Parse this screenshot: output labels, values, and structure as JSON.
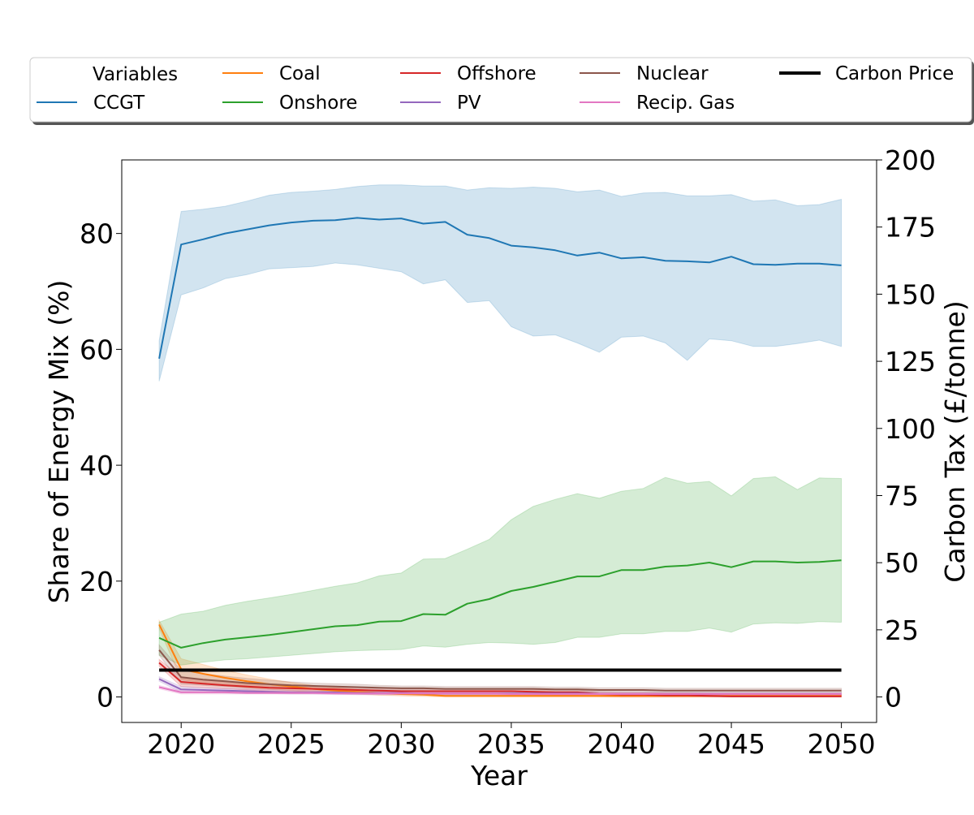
{
  "chart_data": {
    "type": "line",
    "xlabel": "Year",
    "ylabel": "Share of Energy Mix (%)",
    "y2label": "Carbon Tax (£/tonne)",
    "xlim": [
      2017.3,
      2051.6
    ],
    "ylim": [
      -4.4,
      92.7
    ],
    "y2lim": [
      -9.5,
      200
    ],
    "xticks": [
      2020,
      2025,
      2030,
      2035,
      2040,
      2045,
      2050
    ],
    "yticks": [
      0,
      20,
      40,
      60,
      80
    ],
    "y2ticks": [
      0,
      25,
      50,
      75,
      100,
      125,
      150,
      175,
      200
    ],
    "grid": false,
    "legend": {
      "title": "Variables",
      "placement": "top",
      "columns": 5
    },
    "x": [
      2019,
      2020,
      2021,
      2022,
      2023,
      2024,
      2025,
      2026,
      2027,
      2028,
      2029,
      2030,
      2031,
      2032,
      2033,
      2034,
      2035,
      2036,
      2037,
      2038,
      2039,
      2040,
      2041,
      2042,
      2043,
      2044,
      2045,
      2046,
      2047,
      2048,
      2049,
      2050
    ],
    "series": [
      {
        "name": "CCGT",
        "color": "#1f77b4",
        "axis": "left",
        "values": [
          58.4,
          78.1,
          79.0,
          80.0,
          80.7,
          81.4,
          81.9,
          82.2,
          82.3,
          82.7,
          82.4,
          82.6,
          81.7,
          82.0,
          79.8,
          79.2,
          77.9,
          77.6,
          77.1,
          76.2,
          76.7,
          75.7,
          75.9,
          75.3,
          75.2,
          75.0,
          76.0,
          74.7,
          74.6,
          74.8,
          74.8,
          74.5
        ],
        "band_upper": [
          61.5,
          83.8,
          84.2,
          84.7,
          85.6,
          86.6,
          87.1,
          87.3,
          87.6,
          88.1,
          88.4,
          88.4,
          88.2,
          88.2,
          87.5,
          87.9,
          87.8,
          88.0,
          87.8,
          87.2,
          87.5,
          86.4,
          87.0,
          87.1,
          86.5,
          86.5,
          86.7,
          85.6,
          85.8,
          84.8,
          85.0,
          85.9
        ],
        "band_lower": [
          54.5,
          69.4,
          70.6,
          72.2,
          72.9,
          73.9,
          74.1,
          74.3,
          74.9,
          74.6,
          74.0,
          73.4,
          71.3,
          72.0,
          68.1,
          68.4,
          63.9,
          62.3,
          62.5,
          61.1,
          59.5,
          62.1,
          62.3,
          61.1,
          58.1,
          61.8,
          61.5,
          60.5,
          60.5,
          61.0,
          61.6,
          60.5
        ]
      },
      {
        "name": "Coal",
        "color": "#ff7f0e",
        "axis": "left",
        "values": [
          12.5,
          4.8,
          4.0,
          3.3,
          2.7,
          2.2,
          1.8,
          1.4,
          1.1,
          0.9,
          0.7,
          0.5,
          0.4,
          0.2,
          0.2,
          0.2,
          0.2,
          0.2,
          0.2,
          0.2,
          0.2,
          0.2,
          0.2,
          0.2,
          0.2,
          0.2,
          0.2,
          0.2,
          0.2,
          0.2,
          0.2,
          0.2
        ],
        "band_upper": [
          13.2,
          6.6,
          5.6,
          4.6,
          3.8,
          3.1,
          2.5,
          2.0,
          1.6,
          1.3,
          1.1,
          0.8,
          0.6,
          0.4,
          0.4,
          0.4,
          0.4,
          0.4,
          0.4,
          0.4,
          0.4,
          0.4,
          0.4,
          0.4,
          0.4,
          0.4,
          0.4,
          0.4,
          0.4,
          0.4,
          0.4,
          0.4
        ],
        "band_lower": [
          11.8,
          3.0,
          2.4,
          2.0,
          1.6,
          1.3,
          1.1,
          0.8,
          0.6,
          0.5,
          0.3,
          0.2,
          0.1,
          0.0,
          0.0,
          0.0,
          0.0,
          0.0,
          0.0,
          0.0,
          0.0,
          0.0,
          0.0,
          0.0,
          0.0,
          0.0,
          0.0,
          0.0,
          0.0,
          0.0,
          0.0,
          0.0
        ]
      },
      {
        "name": "Onshore",
        "color": "#2ca02c",
        "axis": "left",
        "values": [
          10.2,
          8.5,
          9.3,
          9.9,
          10.3,
          10.7,
          11.2,
          11.7,
          12.2,
          12.4,
          13.0,
          13.1,
          14.3,
          14.2,
          16.1,
          16.9,
          18.3,
          19.0,
          19.9,
          20.8,
          20.8,
          21.9,
          21.9,
          22.5,
          22.7,
          23.2,
          22.4,
          23.4,
          23.4,
          23.2,
          23.3,
          23.6
        ],
        "band_upper": [
          12.9,
          14.3,
          14.8,
          15.8,
          16.5,
          17.1,
          17.7,
          18.4,
          19.1,
          19.7,
          20.9,
          21.4,
          23.8,
          23.9,
          25.5,
          27.2,
          30.6,
          32.9,
          34.1,
          35.1,
          34.3,
          35.5,
          36.0,
          37.9,
          36.9,
          37.2,
          34.7,
          37.7,
          38.0,
          35.8,
          37.8,
          37.7
        ],
        "band_lower": [
          7.2,
          5.5,
          6.0,
          6.4,
          6.6,
          6.9,
          7.2,
          7.5,
          7.8,
          8.0,
          8.1,
          8.2,
          8.8,
          8.6,
          9.1,
          9.4,
          9.3,
          9.1,
          9.4,
          10.3,
          10.3,
          10.9,
          10.9,
          11.3,
          11.3,
          11.9,
          11.2,
          12.6,
          12.8,
          12.7,
          13.0,
          12.9
        ]
      },
      {
        "name": "Offshore",
        "color": "#d62728",
        "axis": "left",
        "values": [
          5.9,
          2.6,
          2.3,
          2.0,
          1.8,
          1.6,
          1.5,
          1.4,
          1.3,
          1.2,
          1.1,
          1.0,
          1.0,
          1.0,
          1.0,
          1.0,
          1.0,
          0.9,
          0.8,
          0.8,
          0.5,
          0.4,
          0.4,
          0.3,
          0.3,
          0.2,
          0.1,
          0.1,
          0.1,
          0.1,
          0.1,
          0.1
        ],
        "band_upper": [
          6.5,
          3.4,
          3.0,
          2.7,
          2.4,
          2.2,
          2.0,
          1.9,
          1.8,
          1.7,
          1.6,
          1.5,
          1.5,
          1.4,
          1.4,
          1.4,
          1.4,
          1.3,
          1.2,
          1.2,
          0.9,
          0.8,
          0.8,
          0.7,
          0.7,
          0.6,
          0.5,
          0.5,
          0.5,
          0.5,
          0.5,
          0.5
        ],
        "band_lower": [
          5.3,
          1.8,
          1.6,
          1.4,
          1.2,
          1.0,
          0.9,
          0.8,
          0.7,
          0.7,
          0.6,
          0.5,
          0.5,
          0.5,
          0.5,
          0.5,
          0.5,
          0.4,
          0.3,
          0.3,
          0.1,
          0.0,
          0.0,
          0.0,
          0.0,
          0.0,
          0.0,
          0.0,
          0.0,
          0.0,
          0.0,
          0.0
        ]
      },
      {
        "name": "PV",
        "color": "#9467bd",
        "axis": "left",
        "values": [
          3.1,
          1.3,
          1.2,
          1.1,
          1.0,
          0.9,
          0.8,
          0.8,
          0.8,
          0.7,
          0.7,
          0.7,
          0.6,
          0.6,
          0.6,
          0.6,
          0.6,
          0.6,
          0.6,
          0.6,
          0.5,
          0.5,
          0.5,
          0.5,
          0.5,
          0.5,
          0.5,
          0.5,
          0.5,
          0.5,
          0.5,
          0.5
        ],
        "band_upper": [
          3.5,
          1.8,
          1.6,
          1.5,
          1.4,
          1.3,
          1.2,
          1.1,
          1.1,
          1.0,
          1.0,
          1.0,
          0.9,
          0.9,
          0.9,
          0.9,
          0.9,
          0.9,
          0.9,
          0.9,
          0.8,
          0.8,
          0.8,
          0.8,
          0.8,
          0.8,
          0.8,
          0.8,
          0.8,
          0.8,
          0.8,
          0.8
        ],
        "band_lower": [
          2.7,
          0.8,
          0.8,
          0.7,
          0.6,
          0.6,
          0.5,
          0.5,
          0.5,
          0.4,
          0.4,
          0.4,
          0.3,
          0.3,
          0.3,
          0.3,
          0.3,
          0.3,
          0.3,
          0.3,
          0.2,
          0.2,
          0.2,
          0.2,
          0.2,
          0.2,
          0.2,
          0.2,
          0.2,
          0.2,
          0.2,
          0.2
        ]
      },
      {
        "name": "Nuclear",
        "color": "#8c564b",
        "axis": "left",
        "values": [
          8.1,
          3.4,
          3.0,
          2.7,
          2.4,
          2.2,
          2.0,
          1.9,
          1.8,
          1.7,
          1.6,
          1.5,
          1.5,
          1.4,
          1.4,
          1.4,
          1.4,
          1.4,
          1.3,
          1.3,
          1.2,
          1.2,
          1.2,
          1.1,
          1.1,
          1.1,
          1.1,
          1.1,
          1.1,
          1.1,
          1.1,
          1.1
        ],
        "band_upper": [
          9.0,
          4.6,
          4.0,
          3.6,
          3.2,
          2.9,
          2.6,
          2.4,
          2.3,
          2.2,
          2.0,
          1.9,
          1.9,
          1.8,
          1.8,
          1.8,
          1.8,
          1.8,
          1.7,
          1.7,
          1.6,
          1.6,
          1.6,
          1.5,
          1.5,
          1.5,
          1.5,
          1.5,
          1.5,
          1.5,
          1.5,
          1.5
        ],
        "band_lower": [
          7.2,
          2.2,
          2.0,
          1.8,
          1.6,
          1.5,
          1.4,
          1.4,
          1.3,
          1.2,
          1.2,
          1.1,
          1.1,
          1.0,
          1.0,
          1.0,
          1.0,
          1.0,
          0.9,
          0.9,
          0.8,
          0.8,
          0.8,
          0.7,
          0.7,
          0.7,
          0.7,
          0.7,
          0.7,
          0.7,
          0.7,
          0.7
        ]
      },
      {
        "name": "Recip. Gas",
        "color": "#e377c2",
        "axis": "left",
        "values": [
          1.7,
          0.8,
          0.8,
          0.8,
          0.7,
          0.7,
          0.7,
          0.7,
          0.6,
          0.6,
          0.6,
          0.6,
          0.6,
          0.6,
          0.6,
          0.6,
          0.5,
          0.5,
          0.5,
          0.5,
          0.5,
          0.5,
          0.5,
          0.5,
          0.5,
          0.5,
          0.5,
          0.5,
          0.5,
          0.5,
          0.5,
          0.5
        ],
        "band_upper": [
          2.0,
          1.1,
          1.0,
          1.0,
          0.9,
          0.9,
          0.9,
          0.9,
          0.8,
          0.8,
          0.8,
          0.8,
          0.8,
          0.8,
          0.8,
          0.8,
          0.7,
          0.7,
          0.7,
          0.7,
          0.7,
          0.7,
          0.7,
          0.7,
          0.7,
          0.7,
          0.7,
          0.7,
          0.7,
          0.7,
          0.7,
          0.7
        ],
        "band_lower": [
          1.4,
          0.5,
          0.5,
          0.5,
          0.5,
          0.5,
          0.5,
          0.5,
          0.4,
          0.4,
          0.4,
          0.4,
          0.4,
          0.4,
          0.4,
          0.4,
          0.3,
          0.3,
          0.3,
          0.3,
          0.3,
          0.3,
          0.3,
          0.3,
          0.3,
          0.3,
          0.3,
          0.3,
          0.3,
          0.3,
          0.3,
          0.3
        ]
      },
      {
        "name": "Carbon Price",
        "color": "#000000",
        "axis": "right",
        "values": [
          10,
          10,
          10,
          10,
          10,
          10,
          10,
          10,
          10,
          10,
          10,
          10,
          10,
          10,
          10,
          10,
          10,
          10,
          10,
          10,
          10,
          10,
          10,
          10,
          10,
          10,
          10,
          10,
          10,
          10,
          10,
          10
        ]
      }
    ]
  }
}
